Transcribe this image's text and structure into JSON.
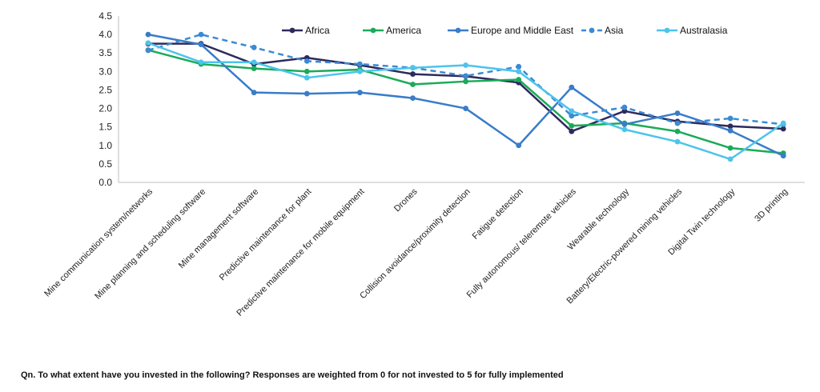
{
  "chart_data": {
    "type": "line",
    "title": "",
    "xlabel": "",
    "ylabel": "",
    "ylim": [
      0,
      4.5
    ],
    "yticks": [
      "0.0",
      "0.5",
      "1.0",
      "1.5",
      "2.0",
      "2.5",
      "3.0",
      "3.5",
      "4.0",
      "4.5"
    ],
    "grid": false,
    "legend_position": "top",
    "categories": [
      "Mine communication system/networks",
      "Mine planning and scheduling software",
      "Mine management software",
      "Predictive maintenance for plant",
      "Predictive maintenance for mobile equipment",
      "Drones",
      "Collision avoidance/proximity detection",
      "Fatigue detection",
      "Fully autonomous/ teleremote vehicles",
      "Wearable technology",
      "Battery/Electric-powered mining vehicles",
      "Digital Twin technology",
      "3D printing"
    ],
    "series": [
      {
        "name": "Africa",
        "color": "#2e2a5c",
        "dashed": false,
        "values": [
          3.75,
          3.75,
          3.2,
          3.37,
          3.17,
          2.93,
          2.87,
          2.7,
          1.38,
          1.93,
          1.65,
          1.52,
          1.45
        ]
      },
      {
        "name": "America",
        "color": "#1aab58",
        "dashed": false,
        "values": [
          3.58,
          3.2,
          3.08,
          3.0,
          3.05,
          2.65,
          2.73,
          2.78,
          1.53,
          1.6,
          1.38,
          0.93,
          0.79
        ]
      },
      {
        "name": "Europe and Middle East",
        "color": "#3a7cc9",
        "dashed": false,
        "values": [
          4.0,
          3.73,
          2.43,
          2.4,
          2.43,
          2.28,
          2.0,
          1.0,
          2.57,
          1.57,
          1.87,
          1.4,
          0.72
        ]
      },
      {
        "name": "Asia",
        "color": "#3a8ad4",
        "dashed": true,
        "values": [
          3.57,
          4.0,
          3.65,
          3.28,
          3.2,
          3.1,
          2.88,
          3.13,
          1.8,
          2.03,
          1.6,
          1.73,
          1.57
        ]
      },
      {
        "name": "Australasia",
        "color": "#4cc4ec",
        "dashed": false,
        "values": [
          3.77,
          3.25,
          3.25,
          2.83,
          3.0,
          3.1,
          3.17,
          3.0,
          1.93,
          1.43,
          1.1,
          0.63,
          1.6
        ]
      }
    ]
  },
  "footnote": "Qn. To what extent have you invested in the following? Responses are weighted from 0 for not invested to 5 for fully implemented"
}
